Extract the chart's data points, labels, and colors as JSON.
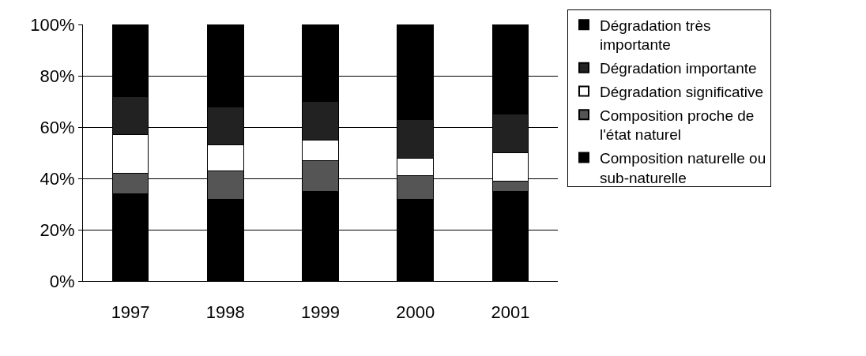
{
  "chart_data": {
    "type": "bar",
    "stacked": true,
    "categories": [
      "1997",
      "1998",
      "1999",
      "2000",
      "2001"
    ],
    "series": [
      {
        "name": "Composition naturelle ou sub-naturelle",
        "color": "#000000",
        "values": [
          34,
          32,
          35,
          32,
          35
        ]
      },
      {
        "name": "Composition proche de l'état naturel",
        "color": "#555555",
        "values": [
          8,
          11,
          12,
          9,
          4
        ]
      },
      {
        "name": "Dégradation significative",
        "color": "#ffffff",
        "values": [
          15,
          10,
          8,
          7,
          11
        ]
      },
      {
        "name": "Dégradation importante",
        "color": "#222222",
        "values": [
          15,
          15,
          15,
          15,
          15
        ]
      },
      {
        "name": "Dégradation très importante",
        "color": "#000000",
        "values": [
          28,
          32,
          30,
          37,
          35
        ]
      }
    ],
    "ylim": [
      0,
      100
    ],
    "yticks": [
      {
        "value": 0,
        "label": "0%"
      },
      {
        "value": 20,
        "label": "20%"
      },
      {
        "value": 40,
        "label": "40%"
      },
      {
        "value": 60,
        "label": "60%"
      },
      {
        "value": 80,
        "label": "80%"
      },
      {
        "value": 100,
        "label": "100%"
      }
    ],
    "grid": "y",
    "legend": "right"
  }
}
